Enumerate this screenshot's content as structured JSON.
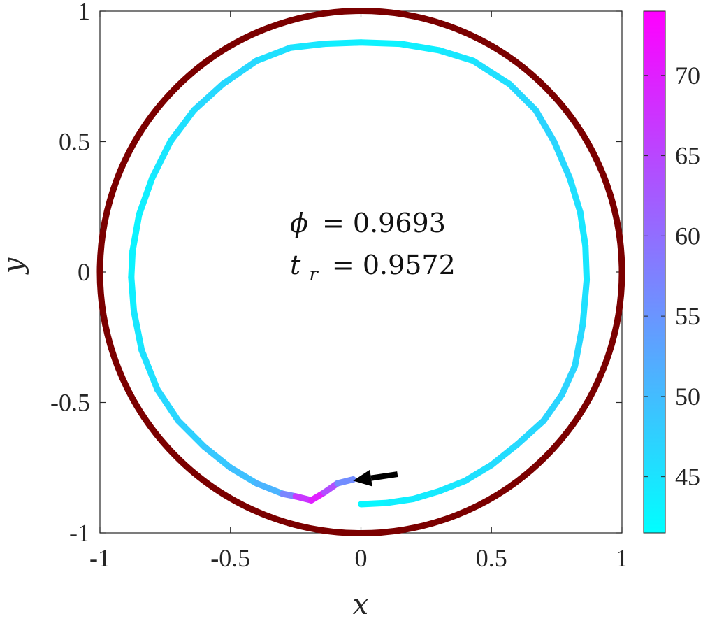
{
  "chart_data": {
    "type": "line",
    "xlim": [
      -1,
      1
    ],
    "ylim": [
      -1,
      1
    ],
    "xticks": [
      -1,
      -0.5,
      0,
      0.5,
      1
    ],
    "yticks": [
      -1,
      -0.5,
      0,
      0.5,
      1
    ],
    "xtick_labels": [
      "-1",
      "-0.5",
      "0",
      "0.5",
      "1"
    ],
    "ytick_labels": [
      "-1",
      "-0.5",
      "0",
      "0.5",
      "1"
    ],
    "xlabel": "x",
    "ylabel": "y",
    "grid": false,
    "boundary": {
      "shape": "circle",
      "center": [
        0,
        0
      ],
      "radius": 1,
      "color": "#7b0000"
    },
    "trajectory": {
      "colormap": [
        "#00ffff",
        "#ff00ff"
      ],
      "color_range": [
        41.5,
        74
      ],
      "points": [
        [
          0.0,
          -0.89,
          42
        ],
        [
          0.1,
          -0.885,
          43
        ],
        [
          0.2,
          -0.87,
          44
        ],
        [
          0.3,
          -0.84,
          44
        ],
        [
          0.4,
          -0.8,
          45
        ],
        [
          0.5,
          -0.74,
          46
        ],
        [
          0.6,
          -0.66,
          46
        ],
        [
          0.7,
          -0.57,
          47
        ],
        [
          0.77,
          -0.47,
          47
        ],
        [
          0.82,
          -0.36,
          47
        ],
        [
          0.85,
          -0.2,
          46
        ],
        [
          0.865,
          -0.03,
          45
        ],
        [
          0.86,
          0.1,
          44
        ],
        [
          0.84,
          0.23,
          45
        ],
        [
          0.8,
          0.36,
          46
        ],
        [
          0.74,
          0.5,
          47
        ],
        [
          0.67,
          0.62,
          47
        ],
        [
          0.57,
          0.72,
          46
        ],
        [
          0.43,
          0.81,
          45
        ],
        [
          0.3,
          0.85,
          44
        ],
        [
          0.15,
          0.875,
          43
        ],
        [
          0.0,
          0.88,
          43
        ],
        [
          -0.14,
          0.875,
          44
        ],
        [
          -0.27,
          0.86,
          45
        ],
        [
          -0.4,
          0.81,
          46
        ],
        [
          -0.53,
          0.72,
          47
        ],
        [
          -0.64,
          0.62,
          46
        ],
        [
          -0.73,
          0.5,
          45
        ],
        [
          -0.8,
          0.36,
          44
        ],
        [
          -0.85,
          0.22,
          43
        ],
        [
          -0.875,
          0.08,
          43
        ],
        [
          -0.88,
          -0.02,
          43
        ],
        [
          -0.87,
          -0.15,
          44
        ],
        [
          -0.84,
          -0.3,
          45
        ],
        [
          -0.78,
          -0.45,
          46
        ],
        [
          -0.7,
          -0.57,
          47
        ],
        [
          -0.6,
          -0.67,
          48
        ],
        [
          -0.5,
          -0.75,
          49
        ],
        [
          -0.4,
          -0.81,
          50
        ],
        [
          -0.3,
          -0.85,
          52
        ],
        [
          -0.25,
          -0.86,
          62
        ],
        [
          -0.19,
          -0.875,
          72
        ],
        [
          -0.14,
          -0.845,
          68
        ],
        [
          -0.09,
          -0.81,
          60
        ],
        [
          -0.03,
          -0.795,
          52
        ]
      ]
    },
    "arrow": {
      "from": [
        0.14,
        -0.775
      ],
      "to": [
        -0.03,
        -0.8
      ],
      "color": "#000000"
    },
    "colorbar": {
      "range": [
        41.5,
        74
      ],
      "ticks": [
        45,
        50,
        55,
        60,
        65,
        70
      ],
      "tick_labels": [
        "45",
        "50",
        "55",
        "60",
        "65",
        "70"
      ]
    },
    "annotations": [
      {
        "lhs": "ϕ",
        "rhs": "= 0.9693"
      },
      {
        "lhs": "t",
        "sub": "r",
        "rhs": "= 0.9572"
      }
    ]
  }
}
